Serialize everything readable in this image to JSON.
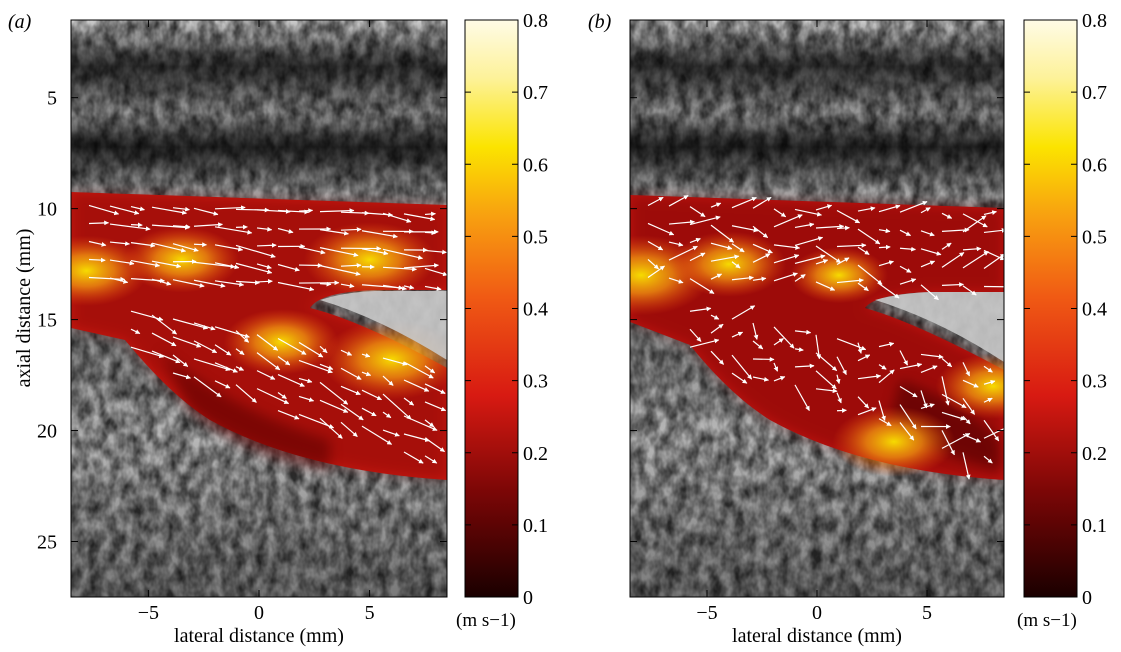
{
  "colors": {
    "velocity_low": "#2a0000",
    "velocity_mid": "#e02010",
    "velocity_high": "#ffffd0",
    "vector": "#ffffff",
    "bmode_background": "#8a8a8a"
  },
  "chart_data": [
    {
      "type": "heatmap",
      "panel_label": "(a)",
      "title": "",
      "xlabel": "lateral distance (mm)",
      "ylabel": "axial distance (mm)",
      "xlim": [
        -8.5,
        8.5
      ],
      "ylim": [
        27.5,
        1.5
      ],
      "xticks": [
        -5,
        0,
        5
      ],
      "yticks": [
        5,
        10,
        15,
        20,
        25
      ],
      "xtick_labels": [
        "−5",
        "0",
        "5"
      ],
      "ytick_labels": [
        "5",
        "10",
        "15",
        "20",
        "25"
      ],
      "colorbar": {
        "min": 0,
        "max": 0.8,
        "ticks": [
          0,
          0.1,
          0.2,
          0.3,
          0.4,
          0.5,
          0.6,
          0.7,
          0.8
        ],
        "tick_labels": [
          "0",
          "0.1",
          "0.2",
          "0.3",
          "0.4",
          "0.5",
          "0.6",
          "0.7",
          "0.8"
        ],
        "unit_label": "(m s−1)"
      },
      "hotspots": [
        {
          "x": 5.0,
          "y": 12.3,
          "value": 0.55
        },
        {
          "x": -7.8,
          "y": 12.8,
          "value": 0.5
        },
        {
          "x": 6.0,
          "y": 16.8,
          "value": 0.6
        },
        {
          "x": 1.0,
          "y": 16.0,
          "value": 0.45
        },
        {
          "x": -3.5,
          "y": 12.3,
          "value": 0.45
        }
      ]
    },
    {
      "type": "heatmap",
      "panel_label": "(b)",
      "title": "",
      "xlabel": "lateral distance (mm)",
      "ylabel": "",
      "xlim": [
        -8.5,
        8.5
      ],
      "ylim": [
        27.5,
        1.5
      ],
      "xticks": [
        -5,
        0,
        5
      ],
      "yticks": [
        5,
        10,
        15,
        20,
        25
      ],
      "xtick_labels": [
        "−5",
        "0",
        "5"
      ],
      "ytick_labels": [],
      "colorbar": {
        "min": 0,
        "max": 0.8,
        "ticks": [
          0,
          0.1,
          0.2,
          0.3,
          0.4,
          0.5,
          0.6,
          0.7,
          0.8
        ],
        "tick_labels": [
          "0",
          "0.1",
          "0.2",
          "0.3",
          "0.4",
          "0.5",
          "0.6",
          "0.7",
          "0.8"
        ],
        "unit_label": "(m s−1)"
      },
      "hotspots": [
        {
          "x": -8.0,
          "y": 13.0,
          "value": 0.6
        },
        {
          "x": -4.0,
          "y": 12.5,
          "value": 0.45
        },
        {
          "x": 3.5,
          "y": 20.5,
          "value": 0.5
        },
        {
          "x": 8.0,
          "y": 18.0,
          "value": 0.45
        },
        {
          "x": 1.0,
          "y": 13.0,
          "value": 0.35
        }
      ]
    }
  ]
}
